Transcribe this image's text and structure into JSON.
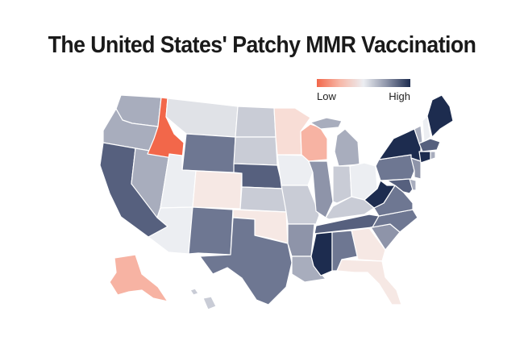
{
  "title": "The United States' Patchy MMR Vaccination",
  "legend": {
    "low_label": "Low",
    "high_label": "High"
  },
  "colors": {
    "lowest": "#f2674a",
    "low": "#f7b3a3",
    "low_light": "#f8ddd6",
    "faint_pink": "#f6e8e4",
    "neutral": "#eceef2",
    "neutral_light": "#e0e2e7",
    "mid_light": "#c9ccd6",
    "mid": "#a8adbd",
    "mid_dark": "#8e94a9",
    "high": "#6e7792",
    "higher": "#56607e",
    "highest": "#1d2c4f"
  },
  "states": {
    "WA": "mid",
    "OR": "mid",
    "CA": "higher",
    "NV": "mid",
    "ID": "lowest",
    "MT": "neutral_light",
    "WY": "high",
    "UT": "neutral",
    "AZ": "neutral",
    "CO": "faint_pink",
    "NM": "high",
    "ND": "mid_light",
    "SD": "mid_light",
    "NE": "higher",
    "KS": "mid_light",
    "OK": "faint_pink",
    "TX": "high",
    "MN": "low_light",
    "IA": "neutral",
    "MO": "mid_light",
    "AR": "mid_dark",
    "LA": "mid",
    "WI": "low",
    "IL": "mid_dark",
    "MI": "mid",
    "IN": "mid_light",
    "OH": "neutral",
    "KY": "mid_light",
    "TN": "higher",
    "MS": "highest",
    "AL": "high",
    "GA": "faint_pink",
    "FL": "faint_pink",
    "SC": "mid_dark",
    "NC": "high",
    "VA": "high",
    "WV": "highest",
    "PA": "high",
    "NY": "highest",
    "NJ": "mid_dark",
    "DE": "mid",
    "MD": "higher",
    "VT": "mid",
    "NH": "neutral",
    "ME": "highest",
    "MA": "higher",
    "CT": "highest",
    "RI": "mid",
    "AK": "low",
    "HI": "mid_light"
  }
}
